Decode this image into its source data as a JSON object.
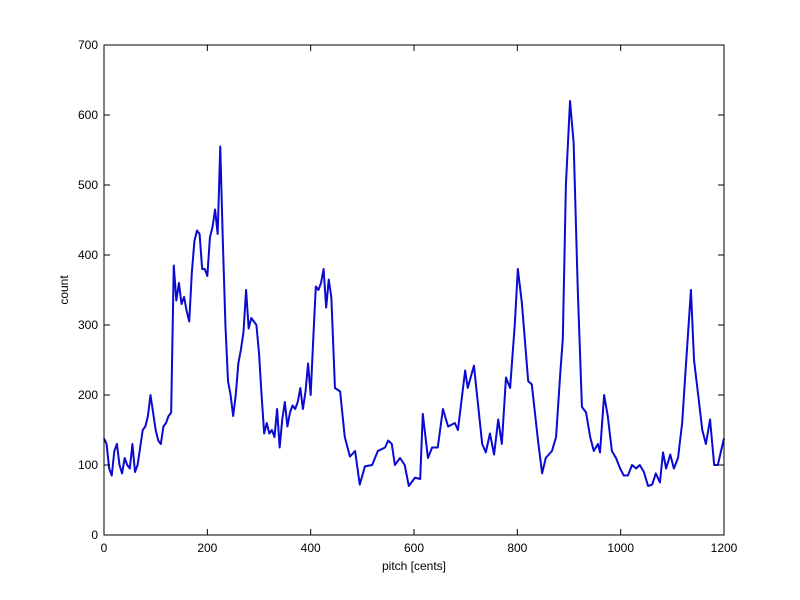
{
  "chart_data": {
    "type": "line",
    "x_label": "pitch [cents]",
    "y_label": "count",
    "x": [
      0,
      5,
      10,
      15,
      20,
      25,
      30,
      35,
      40,
      45,
      50,
      55,
      60,
      65,
      70,
      75,
      80,
      85,
      90,
      95,
      100,
      105,
      110,
      115,
      120,
      125,
      130,
      135,
      140,
      145,
      150,
      155,
      160,
      165,
      170,
      175,
      180,
      185,
      190,
      195,
      200,
      205,
      210,
      215,
      220,
      225,
      230,
      235,
      240,
      245,
      250,
      255,
      260,
      265,
      270,
      275,
      280,
      285,
      290,
      295,
      300,
      305,
      310,
      315,
      320,
      325,
      330,
      335,
      340,
      345,
      350,
      355,
      360,
      365,
      370,
      375,
      380,
      385,
      390,
      395,
      400,
      405,
      410,
      415,
      420,
      425,
      430,
      435,
      440,
      447,
      457,
      466,
      476,
      486,
      495,
      505,
      519,
      530,
      544,
      550,
      557,
      563,
      573,
      582,
      590,
      602,
      612,
      617,
      627,
      635,
      646,
      656,
      666,
      679,
      685,
      699,
      704,
      716,
      722,
      732,
      739,
      747,
      755,
      763,
      770,
      778,
      786,
      795,
      801,
      809,
      821,
      828,
      840,
      848,
      855,
      867,
      875,
      883,
      888,
      894,
      902,
      909,
      917,
      925,
      933,
      941,
      948,
      956,
      960,
      968,
      975,
      983,
      991,
      999,
      1006,
      1014,
      1022,
      1030,
      1037,
      1045,
      1053,
      1061,
      1068,
      1076,
      1082,
      1088,
      1096,
      1103,
      1111,
      1119,
      1127,
      1136,
      1142,
      1150,
      1158,
      1165,
      1173,
      1181,
      1188,
      1200
    ],
    "values": [
      138,
      130,
      95,
      85,
      120,
      130,
      100,
      88,
      110,
      100,
      95,
      130,
      90,
      100,
      125,
      150,
      155,
      170,
      200,
      175,
      150,
      135,
      130,
      155,
      160,
      170,
      175,
      385,
      335,
      360,
      330,
      340,
      320,
      305,
      375,
      420,
      435,
      430,
      380,
      380,
      370,
      425,
      440,
      465,
      430,
      555,
      420,
      300,
      220,
      200,
      170,
      200,
      245,
      265,
      290,
      350,
      295,
      310,
      305,
      300,
      260,
      200,
      145,
      160,
      145,
      150,
      140,
      180,
      125,
      165,
      190,
      155,
      175,
      185,
      180,
      190,
      210,
      180,
      205,
      245,
      200,
      280,
      355,
      350,
      360,
      380,
      325,
      365,
      340,
      210,
      205,
      140,
      112,
      120,
      72,
      98,
      100,
      120,
      125,
      135,
      130,
      100,
      110,
      100,
      70,
      82,
      80,
      173,
      110,
      125,
      125,
      180,
      155,
      160,
      150,
      235,
      210,
      242,
      200,
      130,
      118,
      145,
      115,
      165,
      130,
      225,
      210,
      300,
      380,
      330,
      220,
      215,
      135,
      88,
      110,
      120,
      140,
      230,
      280,
      500,
      620,
      560,
      350,
      183,
      175,
      140,
      120,
      130,
      118,
      200,
      170,
      120,
      110,
      95,
      85,
      85,
      100,
      95,
      100,
      90,
      70,
      72,
      88,
      75,
      118,
      95,
      115,
      95,
      110,
      160,
      250,
      350,
      250,
      200,
      150,
      130,
      165,
      100,
      100,
      138
    ],
    "color": "#0a0ad2",
    "xlim": [
      0,
      1200
    ],
    "xticks": [
      0,
      200,
      400,
      600,
      800,
      1000,
      1200
    ],
    "ylim": [
      0,
      700
    ],
    "yticks": [
      0,
      100,
      200,
      300,
      400,
      500,
      600,
      700
    ]
  }
}
